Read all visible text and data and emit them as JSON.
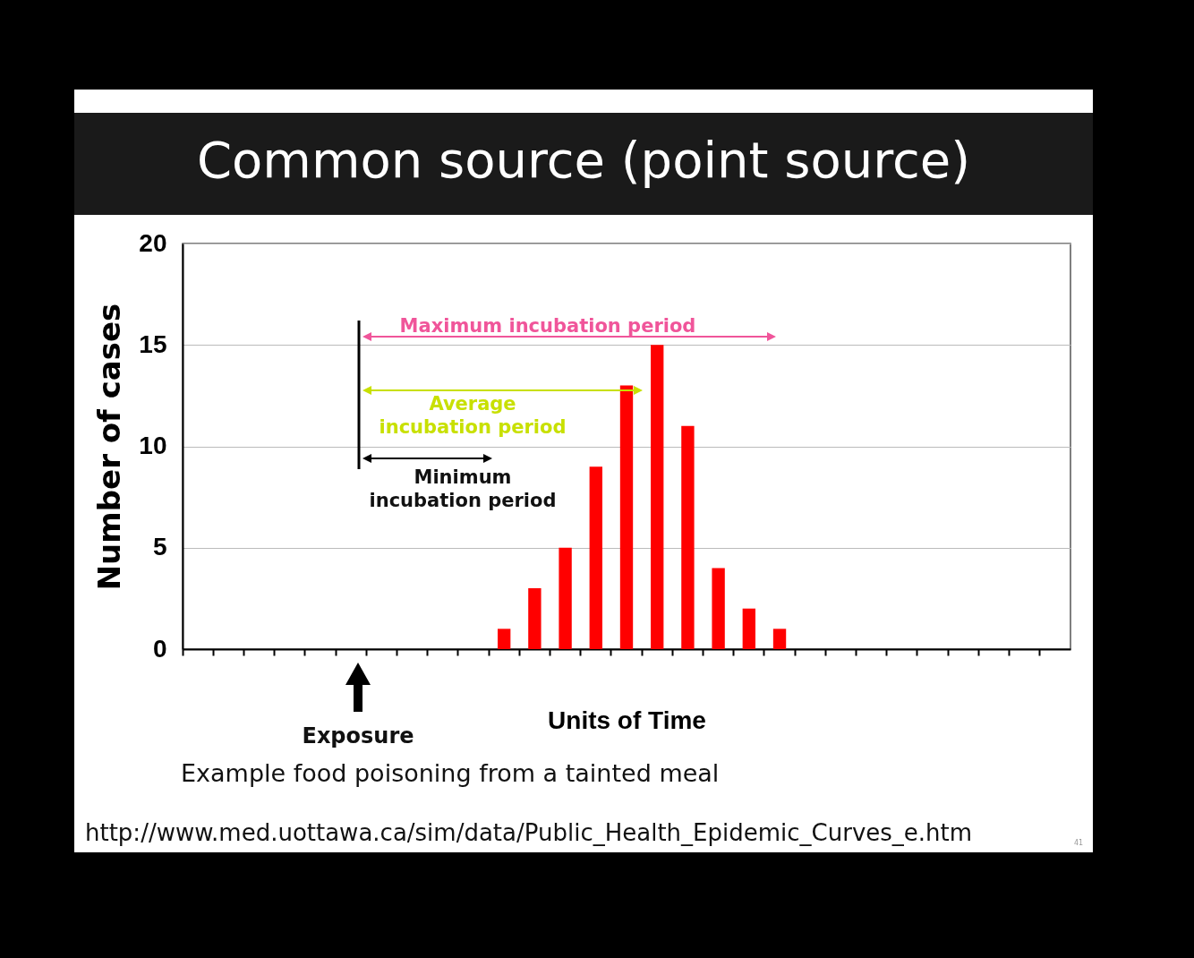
{
  "chart_data": {
    "type": "bar",
    "title": "Common source (point source)",
    "xlabel": "Units of Time",
    "ylabel": "Number of cases",
    "categories": [
      null,
      null,
      null,
      null,
      null,
      null,
      null,
      null,
      null,
      null,
      null,
      null,
      null,
      null,
      null,
      null,
      null,
      null,
      null,
      null,
      null,
      null,
      null,
      null,
      null,
      null,
      null,
      null,
      null
    ],
    "values": [
      0,
      0,
      0,
      0,
      0,
      0,
      0,
      0,
      0,
      0,
      1,
      3,
      5,
      9,
      13,
      15,
      11,
      4,
      2,
      1,
      0,
      0,
      0,
      0,
      0,
      0,
      0,
      0,
      0
    ],
    "color": "#ff0000",
    "ylim": [
      0,
      20
    ],
    "yticks": [
      0,
      5,
      10,
      15,
      20
    ],
    "grid": "y",
    "tick_labels": "y",
    "annotations": [
      "Maximum incubation period",
      "Average incubation period",
      "Minimum incubation period",
      "Exposure",
      "Example food poisoning from a tainted meal",
      "http://www.med.uottawa.ca/sim/data/Public_Health_Epidemic_Curves_e.htm",
      "41"
    ]
  }
}
